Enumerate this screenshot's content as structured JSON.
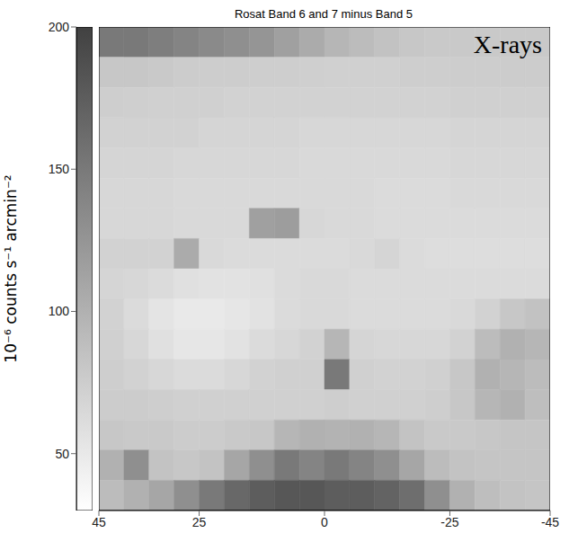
{
  "chart_data": {
    "type": "heatmap",
    "title": "Rosat Band 6 and 7 minus Band 5",
    "annotation": "X-rays",
    "x": [
      42.5,
      37.5,
      32.5,
      27.5,
      22.5,
      17.5,
      12.5,
      7.5,
      2.5,
      -2.5,
      -7.5,
      -12.5,
      -17.5,
      -22.5,
      -27.5,
      -32.5,
      -37.5,
      -42.5
    ],
    "xlim": [
      45,
      -45
    ],
    "xticks": [
      45,
      25,
      0,
      -25,
      -45
    ],
    "tick_labels": "x",
    "cells": [
      [
        150,
        150,
        145,
        140,
        135,
        130,
        125,
        115,
        105,
        95,
        90,
        85,
        80,
        78,
        78,
        78,
        78,
        78
      ],
      [
        80,
        80,
        78,
        76,
        75,
        75,
        74,
        74,
        73,
        72,
        72,
        72,
        74,
        74,
        75,
        75,
        76,
        76
      ],
      [
        74,
        73,
        72,
        72,
        72,
        70,
        70,
        70,
        70,
        70,
        70,
        70,
        70,
        70,
        72,
        72,
        72,
        72
      ],
      [
        70,
        70,
        70,
        70,
        68,
        68,
        68,
        68,
        66,
        66,
        66,
        66,
        66,
        66,
        68,
        68,
        68,
        68
      ],
      [
        68,
        68,
        68,
        66,
        66,
        66,
        66,
        66,
        64,
        64,
        64,
        64,
        64,
        64,
        66,
        66,
        66,
        66
      ],
      [
        66,
        66,
        66,
        64,
        64,
        64,
        64,
        64,
        64,
        64,
        64,
        62,
        62,
        62,
        64,
        64,
        64,
        64
      ],
      [
        66,
        66,
        66,
        64,
        64,
        64,
        115,
        118,
        66,
        64,
        64,
        62,
        62,
        62,
        62,
        62,
        62,
        62
      ],
      [
        70,
        70,
        70,
        105,
        64,
        62,
        62,
        62,
        62,
        62,
        64,
        68,
        62,
        60,
        60,
        60,
        60,
        60
      ],
      [
        68,
        66,
        62,
        58,
        56,
        56,
        58,
        62,
        64,
        64,
        62,
        62,
        62,
        62,
        62,
        62,
        62,
        62
      ],
      [
        70,
        62,
        54,
        50,
        50,
        52,
        56,
        62,
        64,
        64,
        62,
        62,
        62,
        62,
        64,
        70,
        80,
        85
      ],
      [
        72,
        66,
        58,
        52,
        52,
        56,
        62,
        66,
        70,
        95,
        68,
        66,
        66,
        66,
        70,
        90,
        100,
        95
      ],
      [
        74,
        70,
        66,
        62,
        62,
        66,
        70,
        72,
        72,
        150,
        72,
        70,
        70,
        72,
        80,
        100,
        95,
        90
      ],
      [
        76,
        76,
        74,
        72,
        72,
        72,
        72,
        72,
        72,
        74,
        72,
        72,
        72,
        74,
        80,
        95,
        100,
        88
      ],
      [
        80,
        78,
        78,
        76,
        76,
        78,
        80,
        95,
        100,
        98,
        100,
        95,
        84,
        78,
        78,
        80,
        82,
        82
      ],
      [
        100,
        130,
        84,
        80,
        84,
        110,
        130,
        150,
        140,
        150,
        140,
        130,
        110,
        90,
        84,
        82,
        82,
        82
      ],
      [
        90,
        100,
        110,
        130,
        150,
        165,
        175,
        180,
        180,
        175,
        175,
        170,
        160,
        130,
        100,
        88,
        84,
        82
      ]
    ],
    "colorbar": {
      "label": "10⁻⁶ counts s⁻¹ arcmin⁻²",
      "range": [
        30,
        200
      ],
      "ticks": [
        50,
        100,
        150,
        200
      ]
    }
  }
}
